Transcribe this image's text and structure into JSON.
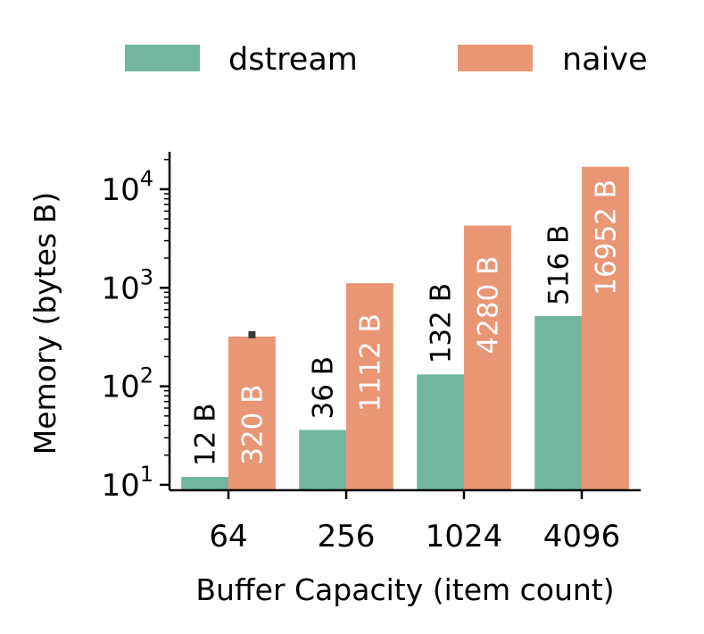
{
  "chart_data": {
    "type": "bar",
    "categories": [
      "64",
      "256",
      "1024",
      "4096"
    ],
    "series": [
      {
        "name": "dstream",
        "values": [
          12,
          36,
          132,
          516
        ],
        "labels": [
          "12 B",
          "36 B",
          "132 B",
          "516 B"
        ],
        "color": "#72b6a0"
      },
      {
        "name": "naive",
        "values": [
          320,
          1112,
          4280,
          16952
        ],
        "labels": [
          "320 B",
          "1112 B",
          "4280 B",
          "16952 B"
        ],
        "color": "#e99674"
      }
    ],
    "xlabel": "Buffer Capacity (item count)",
    "ylabel": "Memory (bytes B)",
    "yscale": "log",
    "ylim": [
      8.8,
      24000
    ],
    "yticks": [
      {
        "value": 10,
        "base": "10",
        "exp": "1"
      },
      {
        "value": 100,
        "base": "10",
        "exp": "2"
      },
      {
        "value": 1000,
        "base": "10",
        "exp": "3"
      },
      {
        "value": 10000,
        "base": "10",
        "exp": "4"
      }
    ],
    "legend": {
      "position": "top-center",
      "columns": 2
    },
    "grid": false
  }
}
